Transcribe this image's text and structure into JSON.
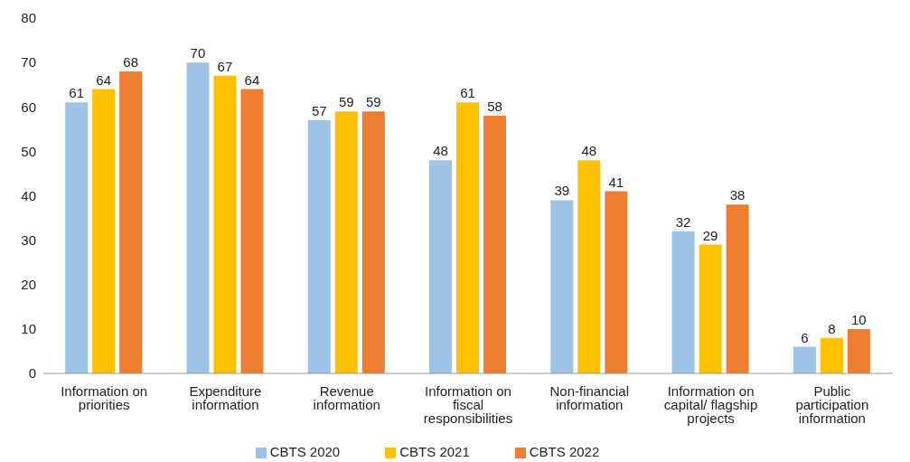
{
  "chart_data": {
    "type": "bar",
    "categories": [
      "Information on priorities",
      "Expenditure information",
      "Revenue information",
      "Information on fiscal responsibilities",
      "Non-financial information",
      "Information on capital/ flagship projects",
      "Public participation information"
    ],
    "series": [
      {
        "name": "CBTS 2020",
        "color": "#9dc3e6",
        "values": [
          61,
          70,
          57,
          48,
          39,
          32,
          6
        ]
      },
      {
        "name": "CBTS 2021",
        "color": "#ffc000",
        "values": [
          64,
          67,
          59,
          61,
          48,
          29,
          8
        ]
      },
      {
        "name": "CBTS 2022",
        "color": "#ed7d31",
        "values": [
          68,
          64,
          59,
          58,
          41,
          38,
          10
        ]
      }
    ],
    "ylim": [
      0,
      80
    ],
    "yticks": [
      0,
      10,
      20,
      30,
      40,
      50,
      60,
      70,
      80
    ],
    "grid": false,
    "legend": "bottom",
    "data_labels": true
  }
}
